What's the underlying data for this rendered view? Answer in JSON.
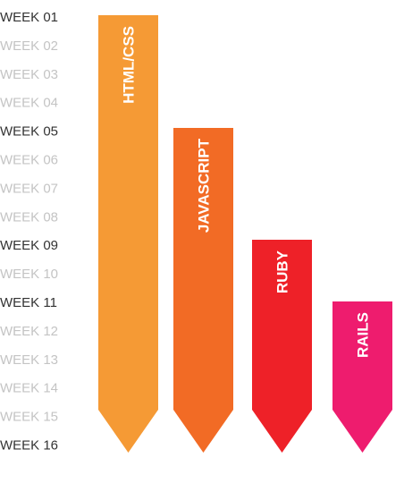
{
  "chart_data": {
    "type": "bar",
    "orientation": "vertical-timeline",
    "weeks": [
      "WEEK 01",
      "WEEK 02",
      "WEEK 03",
      "WEEK 04",
      "WEEK 05",
      "WEEK 06",
      "WEEK 07",
      "WEEK 08",
      "WEEK 09",
      "WEEK 10",
      "WEEK 11",
      "WEEK 12",
      "WEEK 13",
      "WEEK 14",
      "WEEK 15",
      "WEEK 16"
    ],
    "highlighted_weeks": [
      "WEEK 01",
      "WEEK 05",
      "WEEK 09",
      "WEEK 11",
      "WEEK 16"
    ],
    "bars": [
      {
        "label": "HTML/CSS",
        "start_week": 1,
        "end_week": 16,
        "color": "#F59A35"
      },
      {
        "label": "JAVASCRIPT",
        "start_week": 5,
        "end_week": 16,
        "color": "#F26B25"
      },
      {
        "label": "RUBY",
        "start_week": 9,
        "end_week": 16,
        "color": "#EE2128"
      },
      {
        "label": "RAILS",
        "start_week": 11,
        "end_week": 16,
        "color": "#EE1C6E"
      }
    ],
    "colors": {
      "highlighted_label": "#333333",
      "muted_label": "#c4c4c4"
    }
  }
}
